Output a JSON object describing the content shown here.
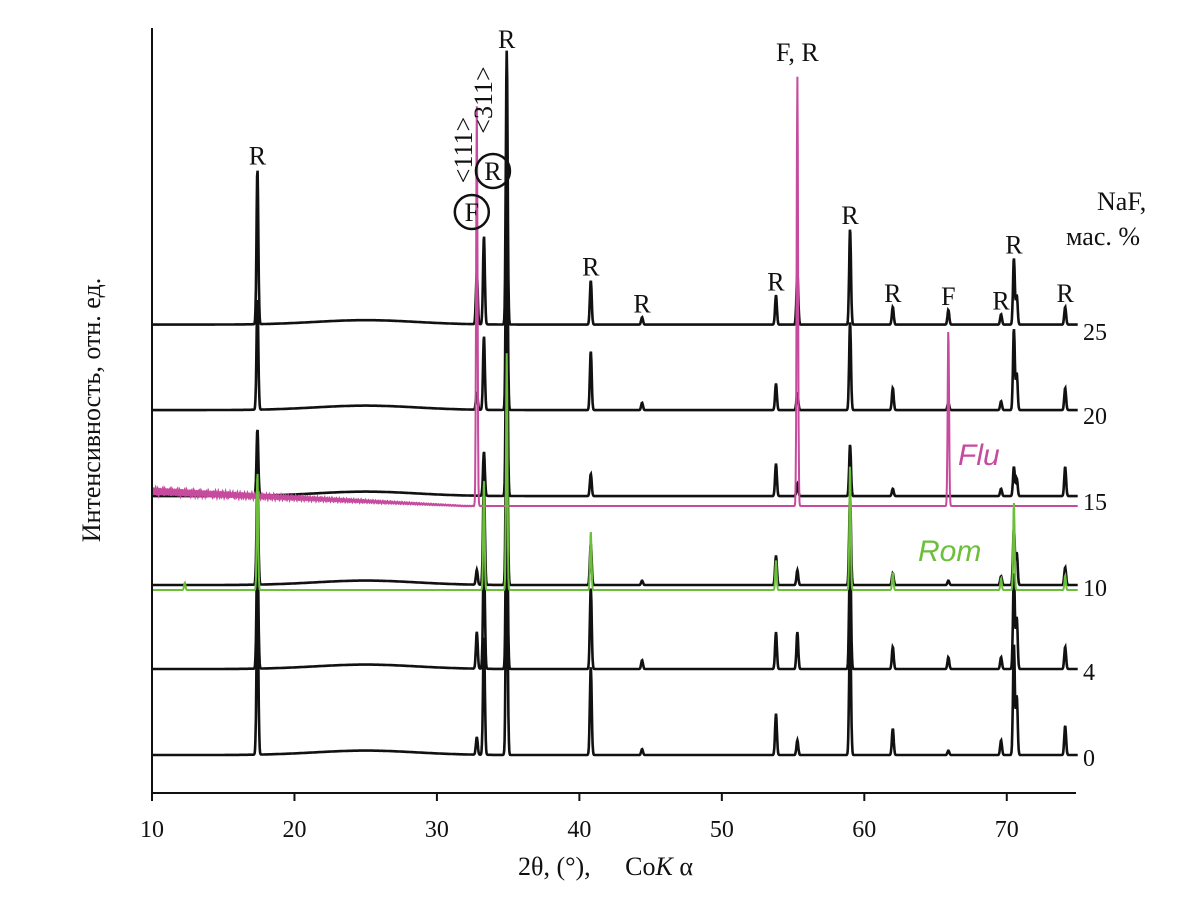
{
  "chart_data": {
    "type": "line",
    "title": "",
    "xlabel_main": "2θ, (°),",
    "xlabel_source_prefix": "Co",
    "xlabel_source_italic": "K",
    "xlabel_source_suffix": " α",
    "ylabel": "Интенсивность, отн. ед.",
    "xlim": [
      10,
      75
    ],
    "x_ticks": [
      10,
      20,
      30,
      40,
      50,
      60,
      70
    ],
    "legend_title_line1": "NaF,",
    "legend_title_line2": "мас. %",
    "legend_placement": "right",
    "grid": false,
    "series": [
      {
        "name": "25",
        "baseline": 5,
        "color": "#111111",
        "peaks": [
          [
            17.4,
            105
          ],
          [
            32.8,
            35
          ],
          [
            33.3,
            60
          ],
          [
            34.9,
            185
          ],
          [
            40.8,
            30
          ],
          [
            44.4,
            5
          ],
          [
            53.8,
            20
          ],
          [
            55.3,
            35
          ],
          [
            59.0,
            65
          ],
          [
            62.0,
            12
          ],
          [
            65.9,
            10
          ],
          [
            69.6,
            7
          ],
          [
            70.5,
            45
          ],
          [
            70.7,
            20
          ],
          [
            74.1,
            12
          ]
        ]
      },
      {
        "name": "20",
        "baseline": 4,
        "color": "#111111",
        "peaks": [
          [
            17.4,
            75
          ],
          [
            32.8,
            12
          ],
          [
            33.3,
            50
          ],
          [
            34.9,
            165
          ],
          [
            40.8,
            40
          ],
          [
            44.4,
            5
          ],
          [
            53.8,
            18
          ],
          [
            55.3,
            12
          ],
          [
            59.0,
            60
          ],
          [
            62.0,
            15
          ],
          [
            65.9,
            5
          ],
          [
            69.6,
            6
          ],
          [
            70.5,
            55
          ],
          [
            70.7,
            25
          ],
          [
            74.1,
            15
          ]
        ]
      },
      {
        "name": "15",
        "baseline": 4,
        "color": "#111111",
        "peaks": [
          [
            17.4,
            45
          ],
          [
            33.3,
            30
          ],
          [
            34.9,
            150
          ],
          [
            40.8,
            15
          ],
          [
            53.8,
            22
          ],
          [
            55.3,
            8
          ],
          [
            59.0,
            35
          ],
          [
            62.0,
            5
          ],
          [
            69.6,
            5
          ],
          [
            70.5,
            20
          ],
          [
            70.7,
            12
          ],
          [
            74.1,
            20
          ]
        ]
      },
      {
        "name": "10",
        "baseline": 2,
        "color": "#111111",
        "peaks": [
          [
            17.4,
            70
          ],
          [
            32.8,
            10
          ],
          [
            33.3,
            70
          ],
          [
            34.9,
            145
          ],
          [
            40.8,
            28
          ],
          [
            44.4,
            3
          ],
          [
            53.8,
            20
          ],
          [
            55.3,
            10
          ],
          [
            59.0,
            60
          ],
          [
            62.0,
            8
          ],
          [
            65.9,
            3
          ],
          [
            69.6,
            6
          ],
          [
            70.5,
            38
          ],
          [
            70.7,
            22
          ],
          [
            74.1,
            12
          ]
        ]
      },
      {
        "name": "4",
        "baseline": 2,
        "color": "#111111",
        "peaks": [
          [
            17.4,
            85
          ],
          [
            32.8,
            25
          ],
          [
            33.3,
            80
          ],
          [
            34.9,
            140
          ],
          [
            40.8,
            55
          ],
          [
            44.4,
            6
          ],
          [
            53.8,
            25
          ],
          [
            55.3,
            25
          ],
          [
            59.0,
            85
          ],
          [
            62.0,
            15
          ],
          [
            65.9,
            8
          ],
          [
            69.6,
            8
          ],
          [
            70.5,
            65
          ],
          [
            70.7,
            35
          ],
          [
            74.1,
            15
          ]
        ]
      },
      {
        "name": "0",
        "baseline": 2,
        "color": "#111111",
        "peaks": [
          [
            17.4,
            110
          ],
          [
            32.8,
            12
          ],
          [
            33.3,
            80
          ],
          [
            34.9,
            160
          ],
          [
            40.8,
            60
          ],
          [
            44.4,
            4
          ],
          [
            53.8,
            28
          ],
          [
            55.3,
            10
          ],
          [
            59.0,
            90
          ],
          [
            62.0,
            18
          ],
          [
            65.9,
            3
          ],
          [
            69.6,
            10
          ],
          [
            70.5,
            75
          ],
          [
            70.7,
            40
          ],
          [
            74.1,
            20
          ]
        ]
      }
    ],
    "reference_patterns": [
      {
        "name": "Flu",
        "color": "#c64a9d",
        "overlay_on": "15",
        "peaks": [
          [
            32.8,
            270
          ],
          [
            55.3,
            290
          ],
          [
            65.9,
            120
          ]
        ]
      },
      {
        "name": "Rom",
        "color": "#6cbf3a",
        "overlay_on": "10",
        "peaks": [
          [
            12.3,
            5
          ],
          [
            17.4,
            80
          ],
          [
            33.3,
            75
          ],
          [
            34.9,
            160
          ],
          [
            40.8,
            40
          ],
          [
            53.8,
            20
          ],
          [
            59.0,
            85
          ],
          [
            62.0,
            12
          ],
          [
            69.6,
            8
          ],
          [
            70.5,
            60
          ],
          [
            74.1,
            10
          ]
        ]
      }
    ],
    "peak_labels": [
      {
        "text": "R",
        "x": 17.4
      },
      {
        "text": "R",
        "x": 34.9
      },
      {
        "text": "R",
        "x": 40.8
      },
      {
        "text": "R",
        "x": 44.4
      },
      {
        "text": "R",
        "x": 53.8
      },
      {
        "text": "F, R",
        "x": 55.3
      },
      {
        "text": "R",
        "x": 59.0
      },
      {
        "text": "R",
        "x": 62.0
      },
      {
        "text": "F",
        "x": 65.9
      },
      {
        "text": "R",
        "x": 69.6
      },
      {
        "text": "R",
        "x": 70.5
      },
      {
        "text": "R",
        "x": 74.1
      }
    ],
    "circled_labels": [
      {
        "text": "F",
        "x": 32.8,
        "orientation": "<111>"
      },
      {
        "text": "R",
        "x": 33.3,
        "orientation": "<311>"
      }
    ]
  }
}
